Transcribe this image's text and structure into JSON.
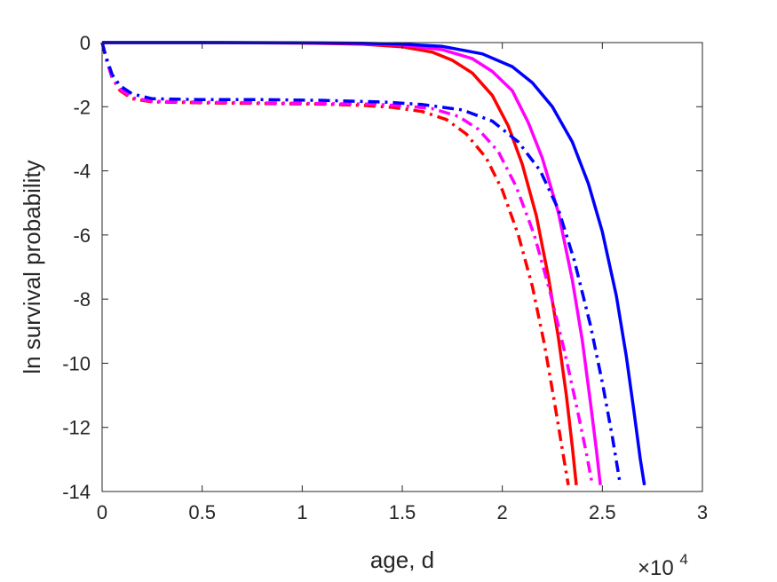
{
  "chart_data": {
    "type": "line",
    "title": "",
    "xlabel": "age, d",
    "ylabel": "ln survival probability",
    "x_exponent_label": {
      "base": "×10",
      "power": "4"
    },
    "xlim": [
      0,
      30000
    ],
    "ylim": [
      -14,
      0
    ],
    "x_ticks": [
      0,
      5000,
      10000,
      15000,
      20000,
      25000,
      30000
    ],
    "x_tick_labels": [
      "0",
      "0.5",
      "1",
      "1.5",
      "2",
      "2.5",
      "3"
    ],
    "y_ticks": [
      0,
      -2,
      -4,
      -6,
      -8,
      -10,
      -12,
      -14
    ],
    "y_tick_labels": [
      "0",
      "-2",
      "-4",
      "-6",
      "-8",
      "-10",
      "-12",
      "-14"
    ],
    "grid": false,
    "legend": "none",
    "series": [
      {
        "color": "#ff0000",
        "style": "solid",
        "points": [
          [
            0,
            0
          ],
          [
            5000,
            -0.001
          ],
          [
            10000,
            -0.015
          ],
          [
            13000,
            -0.05
          ],
          [
            15000,
            -0.13
          ],
          [
            16500,
            -0.3
          ],
          [
            17500,
            -0.55
          ],
          [
            18500,
            -0.95
          ],
          [
            19500,
            -1.65
          ],
          [
            20300,
            -2.6
          ],
          [
            21000,
            -3.8
          ],
          [
            21700,
            -5.4
          ],
          [
            22300,
            -7.3
          ],
          [
            22800,
            -9.2
          ],
          [
            23200,
            -11.0
          ],
          [
            23500,
            -12.6
          ],
          [
            23700,
            -13.8
          ]
        ]
      },
      {
        "color": "#ff00ff",
        "style": "solid",
        "points": [
          [
            0,
            0
          ],
          [
            5000,
            -0.001
          ],
          [
            10000,
            -0.01
          ],
          [
            13000,
            -0.03
          ],
          [
            15000,
            -0.08
          ],
          [
            17000,
            -0.22
          ],
          [
            18500,
            -0.5
          ],
          [
            19500,
            -0.9
          ],
          [
            20500,
            -1.5
          ],
          [
            21300,
            -2.5
          ],
          [
            22000,
            -3.6
          ],
          [
            22800,
            -5.3
          ],
          [
            23500,
            -7.4
          ],
          [
            24000,
            -9.3
          ],
          [
            24400,
            -11.2
          ],
          [
            24700,
            -12.7
          ],
          [
            24900,
            -13.8
          ]
        ]
      },
      {
        "color": "#0000ff",
        "style": "solid",
        "points": [
          [
            0,
            0
          ],
          [
            5000,
            0
          ],
          [
            10000,
            -0.005
          ],
          [
            13000,
            -0.02
          ],
          [
            15000,
            -0.05
          ],
          [
            17000,
            -0.12
          ],
          [
            19000,
            -0.35
          ],
          [
            20500,
            -0.75
          ],
          [
            21500,
            -1.25
          ],
          [
            22500,
            -2.0
          ],
          [
            23500,
            -3.1
          ],
          [
            24300,
            -4.4
          ],
          [
            25000,
            -5.9
          ],
          [
            25700,
            -7.9
          ],
          [
            26200,
            -9.8
          ],
          [
            26600,
            -11.6
          ],
          [
            26900,
            -13.0
          ],
          [
            27100,
            -13.8
          ]
        ]
      },
      {
        "color": "#ff0000",
        "style": "dashdot",
        "points": [
          [
            0,
            0
          ],
          [
            200,
            -0.5
          ],
          [
            500,
            -1.1
          ],
          [
            900,
            -1.5
          ],
          [
            1500,
            -1.75
          ],
          [
            2500,
            -1.85
          ],
          [
            5000,
            -1.88
          ],
          [
            8000,
            -1.9
          ],
          [
            11000,
            -1.92
          ],
          [
            13000,
            -1.96
          ],
          [
            14500,
            -2.02
          ],
          [
            16000,
            -2.15
          ],
          [
            17200,
            -2.4
          ],
          [
            18200,
            -2.85
          ],
          [
            19200,
            -3.6
          ],
          [
            20000,
            -4.6
          ],
          [
            20800,
            -6.0
          ],
          [
            21500,
            -7.6
          ],
          [
            22100,
            -9.4
          ],
          [
            22600,
            -11.2
          ],
          [
            23000,
            -12.7
          ],
          [
            23300,
            -13.8
          ]
        ]
      },
      {
        "color": "#ff00ff",
        "style": "dashdot",
        "points": [
          [
            0,
            0
          ],
          [
            200,
            -0.5
          ],
          [
            500,
            -1.1
          ],
          [
            900,
            -1.45
          ],
          [
            1500,
            -1.72
          ],
          [
            2500,
            -1.83
          ],
          [
            5000,
            -1.86
          ],
          [
            8000,
            -1.88
          ],
          [
            11000,
            -1.9
          ],
          [
            13500,
            -1.92
          ],
          [
            15000,
            -1.97
          ],
          [
            16500,
            -2.06
          ],
          [
            17800,
            -2.3
          ],
          [
            18800,
            -2.7
          ],
          [
            19800,
            -3.4
          ],
          [
            20700,
            -4.5
          ],
          [
            21600,
            -6.0
          ],
          [
            22400,
            -7.8
          ],
          [
            23100,
            -9.6
          ],
          [
            23700,
            -11.3
          ],
          [
            24200,
            -12.8
          ],
          [
            24500,
            -13.8
          ]
        ]
      },
      {
        "color": "#0000ff",
        "style": "dashdot",
        "points": [
          [
            0,
            0
          ],
          [
            200,
            -0.45
          ],
          [
            500,
            -1.0
          ],
          [
            900,
            -1.35
          ],
          [
            1500,
            -1.6
          ],
          [
            2500,
            -1.75
          ],
          [
            5000,
            -1.78
          ],
          [
            8000,
            -1.78
          ],
          [
            11000,
            -1.8
          ],
          [
            14000,
            -1.85
          ],
          [
            16000,
            -1.93
          ],
          [
            18000,
            -2.1
          ],
          [
            19500,
            -2.45
          ],
          [
            20800,
            -3.1
          ],
          [
            21900,
            -4.0
          ],
          [
            22800,
            -5.2
          ],
          [
            23600,
            -6.8
          ],
          [
            24400,
            -8.8
          ],
          [
            25000,
            -10.6
          ],
          [
            25500,
            -12.3
          ],
          [
            25900,
            -13.8
          ]
        ]
      }
    ]
  }
}
